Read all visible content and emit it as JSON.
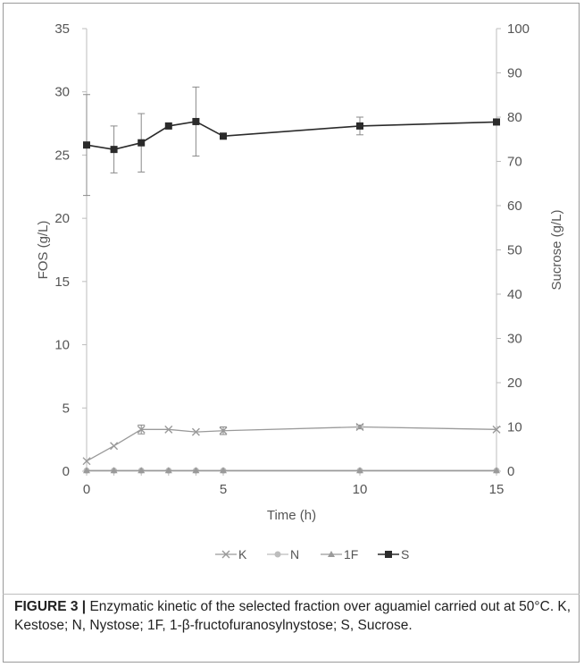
{
  "chart_data": {
    "type": "line",
    "xlabel": "Time (h)",
    "ylabel": "FOS (g/L)",
    "y2label": "Sucrose (g/L)",
    "x": [
      0,
      1,
      2,
      3,
      4,
      5,
      10,
      15
    ],
    "xlim": [
      0,
      15
    ],
    "xticks": [
      0,
      5,
      10,
      15
    ],
    "ylim": [
      0,
      35
    ],
    "yticks": [
      0,
      5,
      10,
      15,
      20,
      25,
      30,
      35
    ],
    "y2lim": [
      0,
      100
    ],
    "y2ticks": [
      0,
      10,
      20,
      30,
      40,
      50,
      60,
      70,
      80,
      90,
      100
    ],
    "grid": false,
    "legend_position": "bottom",
    "series": [
      {
        "name": "K",
        "axis": "left",
        "marker": "x",
        "color": "#9a9a9a",
        "values": [
          0.8,
          2.0,
          3.3,
          3.3,
          3.1,
          3.2,
          3.5,
          3.3
        ],
        "errors": [
          null,
          null,
          0.35,
          null,
          null,
          0.3,
          0.15,
          null
        ]
      },
      {
        "name": "N",
        "axis": "left",
        "marker": "circle",
        "color": "#bdbdbd",
        "values": [
          0.05,
          0.05,
          0.05,
          0.05,
          0.05,
          0.05,
          0.05,
          0.05
        ]
      },
      {
        "name": "1F",
        "axis": "left",
        "marker": "triangle",
        "color": "#9a9a9a",
        "values": [
          0.05,
          0.05,
          0.05,
          0.05,
          0.05,
          0.05,
          0.05,
          0.05
        ]
      },
      {
        "name": "S",
        "axis": "right",
        "marker": "square",
        "color": "#2b2b2b",
        "values": [
          73.7,
          72.7,
          74.2,
          78.0,
          79.0,
          75.7,
          78.0,
          78.9
        ],
        "errors": [
          11.4,
          5.3,
          6.6,
          null,
          7.8,
          null,
          2.0,
          null
        ]
      }
    ]
  },
  "caption": {
    "label": "FIGURE 3 |",
    "text": " Enzymatic kinetic of the selected fraction over aguamiel carried out at 50°C. K, Kestose; N, Nystose; 1F, 1-β-fructofuranosylnystose; S, Sucrose."
  }
}
